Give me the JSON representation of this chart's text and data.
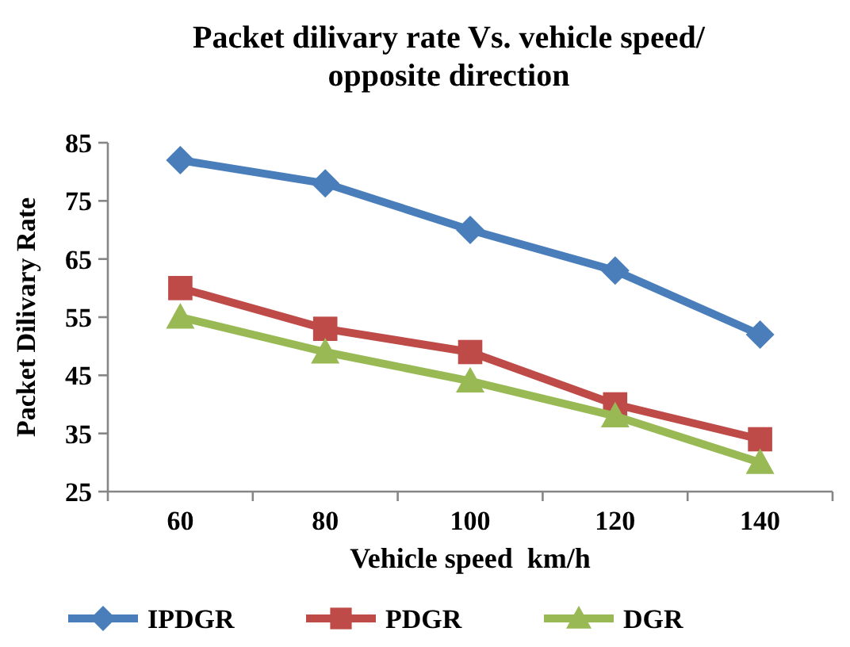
{
  "chart_data": {
    "type": "line",
    "title": "Packet dilivary rate Vs. vehicle speed/ opposite direction",
    "xlabel": "Vehicle speed  km/h",
    "ylabel": "Packet Dilivary Rate",
    "categories": [
      "60",
      "80",
      "100",
      "120",
      "140"
    ],
    "series": [
      {
        "name": "IPDGR",
        "color": "#4a7ebb",
        "marker": "diamond",
        "values": [
          82,
          78,
          70,
          63,
          52
        ]
      },
      {
        "name": "PDGR",
        "color": "#be4b48",
        "marker": "square",
        "values": [
          60,
          53,
          49,
          40,
          34
        ]
      },
      {
        "name": "DGR",
        "color": "#98b954",
        "marker": "triangle",
        "values": [
          55,
          49,
          44,
          38,
          30
        ]
      }
    ],
    "ylim": [
      25,
      85
    ],
    "yticks": [
      25,
      35,
      45,
      55,
      65,
      75,
      85
    ],
    "grid": false,
    "legend": "bottom",
    "line_style": "solid"
  }
}
